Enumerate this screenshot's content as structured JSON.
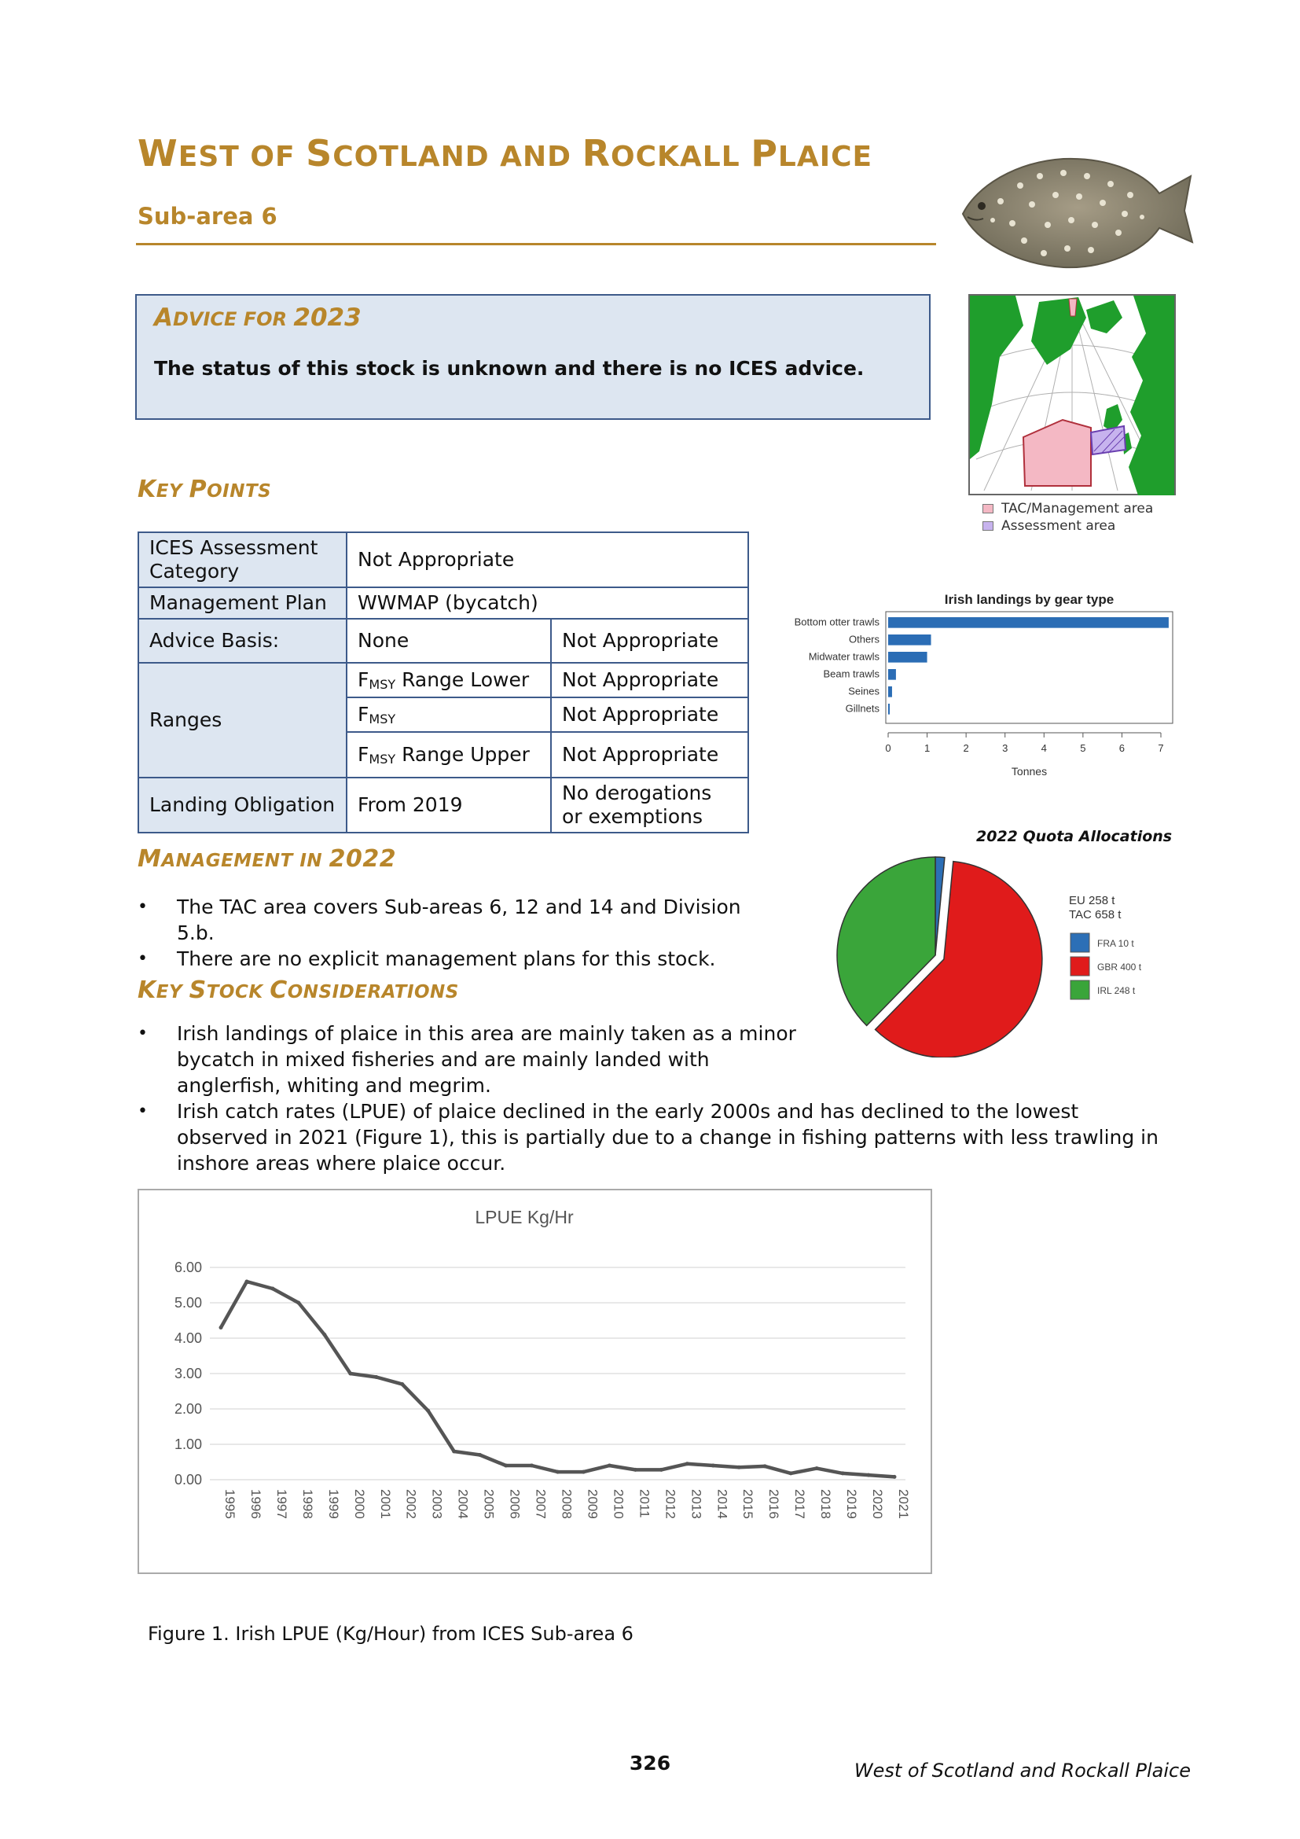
{
  "title": {
    "parts": [
      "W",
      "EST OF ",
      "S",
      "COTLAND AND ",
      "R",
      "OCKALL ",
      "P",
      "LAICE"
    ]
  },
  "subtitle": "Sub-area 6",
  "advice": {
    "heading_a": "A",
    "heading_b": "DVICE FOR ",
    "heading_c": "2023",
    "text": "The status of this stock is unknown and there is no ICES advice."
  },
  "headings": {
    "key_points": [
      "K",
      "EY ",
      "P",
      "OINTS"
    ],
    "management": [
      "M",
      "ANAGEMENT IN ",
      "2022"
    ],
    "considerations": [
      "K",
      "EY ",
      "S",
      "TOCK ",
      "C",
      "ONSIDERATIONS"
    ]
  },
  "key_points_table": {
    "ices_category_label": "ICES Assessment Category",
    "ices_category_value": "Not Appropriate",
    "management_plan_label": "Management Plan",
    "management_plan_value": "WWMAP (bycatch)",
    "advice_basis_label": "Advice Basis:",
    "advice_basis_value": "None",
    "advice_basis_value2": "Not Appropriate",
    "ranges_label": "Ranges",
    "f_msy_main": "F",
    "f_msy_sub": "MSY",
    "range_lower_label": " Range Lower",
    "range_lower_value": "Not Appropriate",
    "fmsy_value": "Not Appropriate",
    "range_upper_label": " Range Upper",
    "range_upper_value": "Not Appropriate",
    "landing_label": "Landing Obligation",
    "landing_value": "From 2019",
    "landing_value2": "No derogations or exemptions"
  },
  "management_bullets": [
    "The TAC area covers Sub-areas 6, 12 and 14 and Division 5.b.",
    "There are no explicit management plans for this stock."
  ],
  "consideration_bullets": [
    "Irish landings of plaice in this area are mainly taken as a minor bycatch in mixed fisheries and are mainly landed with anglerfish, whiting and megrim.",
    "Irish catch rates (LPUE) of plaice declined in the early 2000s and has declined to the lowest observed in 2021 (Figure 1), this is partially due to a change in fishing patterns with less trawling in inshore areas where plaice occur."
  ],
  "map_legend": {
    "tac": "TAC/Management area",
    "assessment": "Assessment area",
    "tac_color": "#f4b8c4",
    "assessment_color": "#9b7ad6"
  },
  "figure_caption": "Figure 1. Irish LPUE (Kg/Hour) from ICES Sub-area 6",
  "footer": {
    "page_number": "326",
    "running_title": "West of Scotland and Rockall Plaice"
  },
  "chart_data": [
    {
      "type": "bar",
      "title": "Irish landings by gear type",
      "xlabel": "Tonnes",
      "ylabel": "",
      "orientation": "horizontal",
      "categories": [
        "Bottom otter trawls",
        "Others",
        "Midwater trawls",
        "Beam trawls",
        "Seines",
        "Gillnets"
      ],
      "values": [
        7.2,
        1.1,
        1.0,
        0.2,
        0.1,
        0.03
      ],
      "xlim": [
        0,
        7
      ],
      "x_ticks": [
        "0",
        "1",
        "2",
        "3",
        "4",
        "5",
        "6",
        "7"
      ],
      "color": "#2b6db5"
    },
    {
      "type": "pie",
      "title": "2022 Quota Allocations",
      "annotations": [
        "EU 258 t",
        "TAC 658 t"
      ],
      "categories": [
        "FRA 10 t",
        "GBR 400 t",
        "IRL 248 t"
      ],
      "values": [
        10,
        400,
        248
      ],
      "colors": [
        "#2c6fb6",
        "#e01b1b",
        "#3aa53a"
      ]
    },
    {
      "type": "line",
      "title": "LPUE Kg/Hr",
      "xlabel": "",
      "ylabel": "",
      "x": [
        "1995",
        "1996",
        "1997",
        "1998",
        "1999",
        "2000",
        "2001",
        "2002",
        "2003",
        "2004",
        "2005",
        "2006",
        "2007",
        "2008",
        "2009",
        "2010",
        "2011",
        "2012",
        "2013",
        "2014",
        "2015",
        "2016",
        "2017",
        "2018",
        "2019",
        "2020",
        "2021"
      ],
      "values": [
        4.3,
        5.6,
        5.4,
        5.0,
        4.1,
        3.0,
        2.9,
        2.7,
        1.95,
        0.8,
        0.7,
        0.4,
        0.4,
        0.22,
        0.22,
        0.4,
        0.28,
        0.28,
        0.45,
        0.4,
        0.35,
        0.38,
        0.18,
        0.32,
        0.18,
        0.13,
        0.08
      ],
      "ylim": [
        0,
        6
      ],
      "y_ticks": [
        "0.00",
        "1.00",
        "2.00",
        "3.00",
        "4.00",
        "5.00",
        "6.00"
      ],
      "grid": true,
      "color": "#555555"
    }
  ]
}
